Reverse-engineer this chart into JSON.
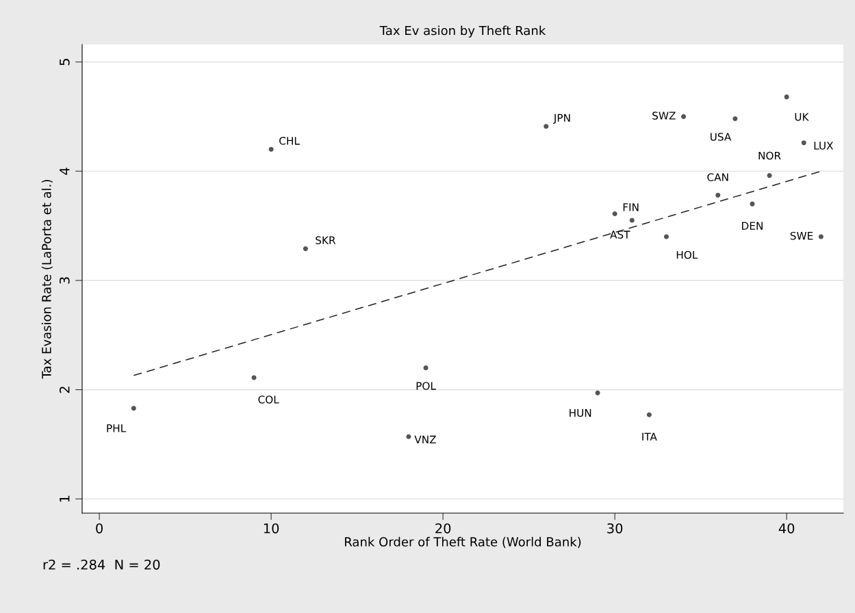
{
  "chart_data": {
    "type": "scatter",
    "title": "Tax Ev asion by Theft Rank",
    "xlabel": "Rank Order of Theft Rate (World Bank)",
    "ylabel": "Tax Evasion Rate (LaPorta et al.)",
    "xlim": [
      -1,
      43.3
    ],
    "ylim": [
      0.87,
      5.16
    ],
    "xticks": [
      0,
      10,
      20,
      30,
      40
    ],
    "yticks": [
      1,
      2,
      3,
      4,
      5
    ],
    "grid": "y",
    "marker": "circle",
    "series": [
      {
        "color": "#555555",
        "x": [
          2,
          9,
          10,
          12,
          18,
          19,
          26,
          29,
          30,
          31,
          32,
          33,
          34,
          36,
          37,
          38,
          39,
          40,
          41,
          42
        ],
        "values": [
          1.83,
          2.11,
          4.2,
          3.29,
          1.57,
          2.2,
          4.41,
          1.97,
          3.61,
          3.55,
          1.77,
          3.4,
          4.5,
          3.78,
          4.48,
          3.7,
          3.96,
          4.68,
          4.26,
          3.4
        ]
      },
      {
        "type": "line",
        "color": "#222222",
        "line_style": "dashed",
        "marker": "none",
        "x": [
          2,
          42
        ],
        "values": [
          2.13,
          4.0
        ]
      }
    ],
    "annotations": [
      {
        "text": "PHL",
        "x": 2,
        "y": 1.83
      },
      {
        "text": "COL",
        "x": 9,
        "y": 2.11
      },
      {
        "text": "CHL",
        "x": 10,
        "y": 4.2
      },
      {
        "text": "SKR",
        "x": 12,
        "y": 3.29
      },
      {
        "text": "VNZ",
        "x": 18,
        "y": 1.57
      },
      {
        "text": "POL",
        "x": 19,
        "y": 2.2
      },
      {
        "text": "JPN",
        "x": 26,
        "y": 4.41
      },
      {
        "text": "HUN",
        "x": 29,
        "y": 1.97
      },
      {
        "text": "FIN",
        "x": 30,
        "y": 3.61
      },
      {
        "text": "AST",
        "x": 31,
        "y": 3.55
      },
      {
        "text": "ITA",
        "x": 32,
        "y": 1.77
      },
      {
        "text": "HOL",
        "x": 33,
        "y": 3.4
      },
      {
        "text": "SWZ",
        "x": 34,
        "y": 4.5
      },
      {
        "text": "CAN",
        "x": 36,
        "y": 3.78
      },
      {
        "text": "USA",
        "x": 37,
        "y": 4.48
      },
      {
        "text": "DEN",
        "x": 38,
        "y": 3.7
      },
      {
        "text": "NOR",
        "x": 39,
        "y": 3.96
      },
      {
        "text": "UK",
        "x": 40,
        "y": 4.68
      },
      {
        "text": "LUX",
        "x": 41,
        "y": 4.26
      },
      {
        "text": "SWE",
        "x": 42,
        "y": 3.4
      },
      "r2 = .284  N = 20"
    ]
  }
}
